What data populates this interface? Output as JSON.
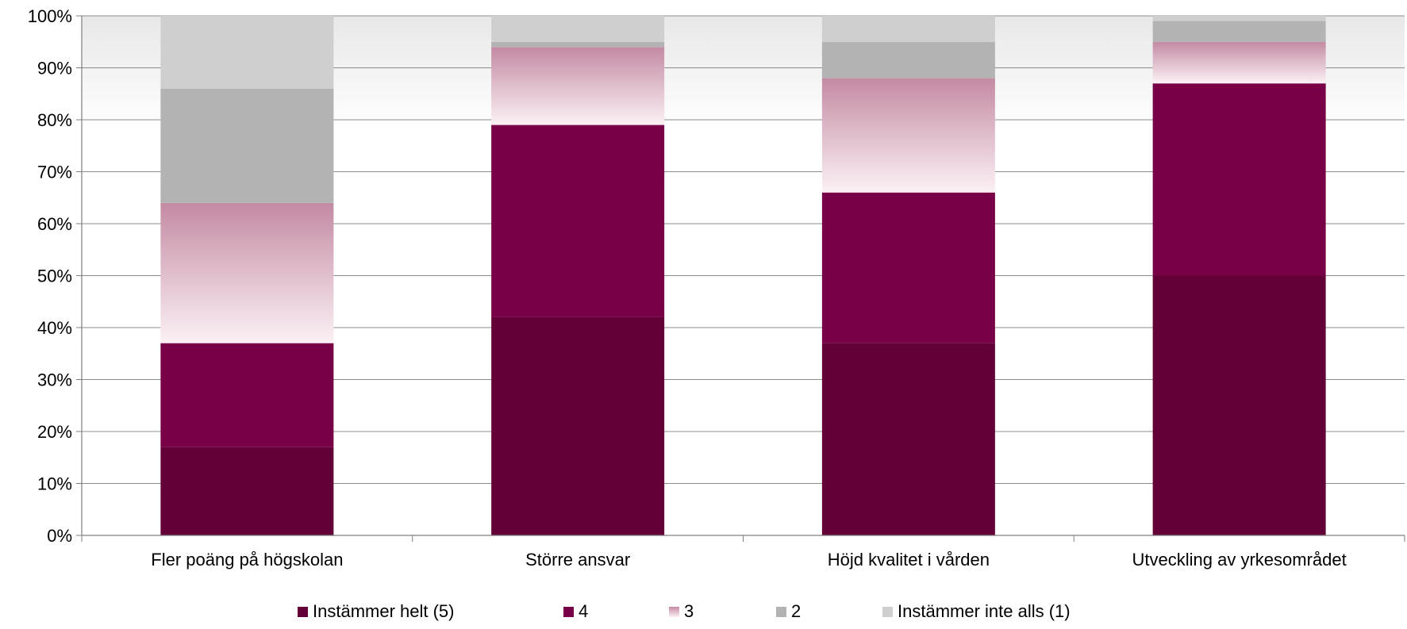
{
  "chart_data": {
    "type": "bar",
    "stacked": true,
    "percent": true,
    "categories": [
      "Fler poäng på högskolan",
      "Större ansvar",
      "Höjd kvalitet i vården",
      "Utveckling av yrkesområdet"
    ],
    "series": [
      {
        "name": "Instämmer helt (5)",
        "color": "#640038",
        "values": [
          17,
          42,
          37,
          50
        ]
      },
      {
        "name": "4",
        "color": "#780046",
        "values": [
          20,
          37,
          29,
          37
        ]
      },
      {
        "name": "3",
        "color": "#dcaabf",
        "values": [
          27,
          15,
          22,
          8
        ]
      },
      {
        "name": "2",
        "color": "#b3b3b3",
        "values": [
          22,
          1,
          7,
          4
        ]
      },
      {
        "name": "Instämmer inte alls (1)",
        "color": "#cfcfcf",
        "values": [
          14,
          5,
          5,
          1
        ]
      }
    ],
    "ylim": [
      0,
      100
    ],
    "yticks": [
      "0%",
      "10%",
      "20%",
      "30%",
      "40%",
      "50%",
      "60%",
      "70%",
      "80%",
      "90%",
      "100%"
    ],
    "grid": true,
    "legend": "bottom"
  }
}
